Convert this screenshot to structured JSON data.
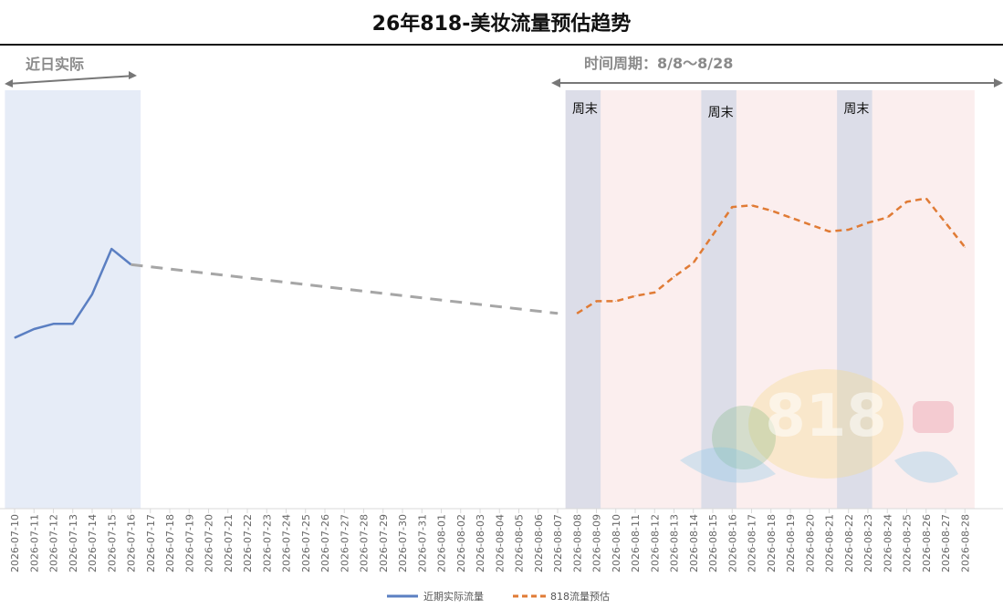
{
  "title": "26年818-美妆流量预估趋势",
  "annotations": {
    "recent_actual": "近日实际",
    "period": "时间周期：8/8～8/28",
    "weekend": "周末"
  },
  "colors": {
    "actual": "#5b7fc2",
    "connector": "#a6a6a6",
    "forecast": "#e07b35",
    "actual_bg": "#e6ecf7",
    "forecast_bg": "#fbeeee",
    "weekend_bg": "#dcdde8"
  },
  "chart_data": {
    "type": "line",
    "x": [
      "2026-07-10",
      "2026-07-11",
      "2026-07-12",
      "2026-07-13",
      "2026-07-14",
      "2026-07-15",
      "2026-07-16",
      "2026-07-17",
      "2026-07-18",
      "2026-07-19",
      "2026-07-20",
      "2026-07-21",
      "2026-07-22",
      "2026-07-23",
      "2026-07-24",
      "2026-07-25",
      "2026-07-26",
      "2026-07-27",
      "2026-07-28",
      "2026-07-29",
      "2026-07-30",
      "2026-07-31",
      "2026-08-01",
      "2026-08-02",
      "2026-08-03",
      "2026-08-04",
      "2026-08-05",
      "2026-08-06",
      "2026-08-07",
      "2026-08-08",
      "2026-08-09",
      "2026-08-10",
      "2026-08-11",
      "2026-08-12",
      "2026-08-13",
      "2026-08-14",
      "2026-08-15",
      "2026-08-16",
      "2026-08-17",
      "2026-08-18",
      "2026-08-19",
      "2026-08-20",
      "2026-08-21",
      "2026-08-22",
      "2026-08-23",
      "2026-08-24",
      "2026-08-25",
      "2026-08-26",
      "2026-08-27",
      "2026-08-28"
    ],
    "series": [
      {
        "name": "近期实际流量",
        "style": "solid",
        "values": [
          49.0,
          51.5,
          53.0,
          53.0,
          61.5,
          74.5,
          70.0,
          null,
          null,
          null,
          null,
          null,
          null,
          null,
          null,
          null,
          null,
          null,
          null,
          null,
          null,
          null,
          null,
          null,
          null,
          null,
          null,
          null,
          null,
          null,
          null,
          null,
          null,
          null,
          null,
          null,
          null,
          null,
          null,
          null,
          null,
          null,
          null,
          null,
          null,
          null,
          null,
          null,
          null,
          null
        ]
      },
      {
        "name": "",
        "style": "connector",
        "values": [
          null,
          null,
          null,
          null,
          null,
          null,
          70.0,
          null,
          null,
          null,
          null,
          null,
          null,
          null,
          null,
          null,
          null,
          null,
          null,
          null,
          null,
          null,
          null,
          null,
          null,
          null,
          null,
          null,
          56.0,
          null,
          null,
          null,
          null,
          null,
          null,
          null,
          null,
          null,
          null,
          null,
          null,
          null,
          null,
          null,
          null,
          null,
          null,
          null,
          null,
          null
        ]
      },
      {
        "name": "818流量预估",
        "style": "dashed",
        "values": [
          null,
          null,
          null,
          null,
          null,
          null,
          null,
          null,
          null,
          null,
          null,
          null,
          null,
          null,
          null,
          null,
          null,
          null,
          null,
          null,
          null,
          null,
          null,
          null,
          null,
          null,
          null,
          null,
          null,
          56.0,
          59.5,
          59.5,
          61.0,
          62.0,
          66.5,
          70.5,
          78.5,
          86.5,
          87.0,
          85.5,
          83.5,
          81.5,
          79.5,
          80.0,
          82.0,
          83.5,
          88.0,
          89.0,
          82.0,
          75.0
        ]
      }
    ],
    "ylim": [
      0,
      120
    ],
    "weekends": [
      "2026-08-08",
      "2026-08-15",
      "2026-08-22"
    ],
    "actual_range": [
      "2026-07-10",
      "2026-07-16"
    ],
    "forecast_range": [
      "2026-08-08",
      "2026-08-28"
    ],
    "legend_position": "bottom",
    "grid": false
  }
}
